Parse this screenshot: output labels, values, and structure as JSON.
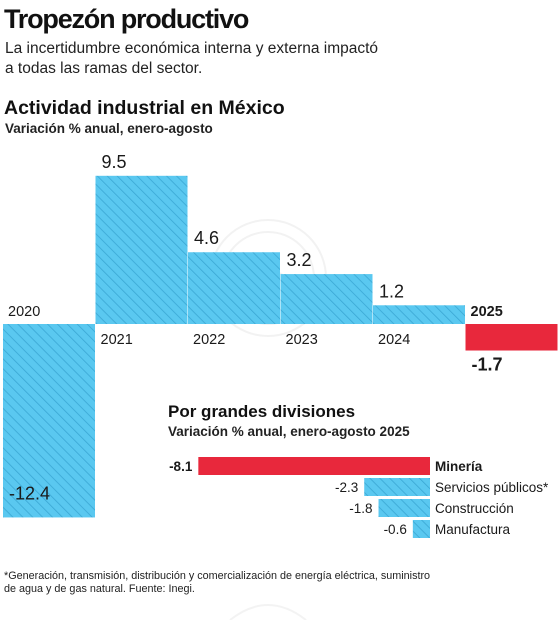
{
  "headline": "Tropezón productivo",
  "subheadline_lines": [
    "La incertidumbre económica interna y externa impactó",
    "a todas las ramas del sector."
  ],
  "footnote_lines": [
    "*Generación, transmisión, distribución y comercialización de energía eléctrica, suministro",
    "de agua y de gas natural. Fuente: Inegi."
  ],
  "colors": {
    "positive": "#5ac8f0",
    "negative": "#e8283c",
    "hatch": "#3aa7d4",
    "text": "#1a1a1a"
  },
  "chart_data": [
    {
      "type": "bar",
      "title": "Actividad industrial en México",
      "subtitle": "Variación % anual, enero-agosto",
      "categories": [
        "2020",
        "2021",
        "2022",
        "2023",
        "2024",
        "2025"
      ],
      "values": [
        -12.4,
        9.5,
        4.6,
        3.2,
        1.2,
        -1.7
      ],
      "value_labels": [
        "-12.4",
        "9.5",
        "4.6",
        "3.2",
        "1.2",
        "-1.7"
      ],
      "ylim": [
        -12.4,
        9.5
      ],
      "grid": false,
      "legend": "none"
    },
    {
      "type": "bar",
      "orientation": "horizontal",
      "title": "Por grandes divisiones",
      "subtitle": "Variación % anual, enero-agosto 2025",
      "categories": [
        "Minería",
        "Servicios públicos*",
        "Construcción",
        "Manufactura"
      ],
      "values": [
        -8.1,
        -2.3,
        -1.8,
        -0.6
      ],
      "value_labels": [
        "-8.1",
        "-2.3",
        "-1.8",
        "-0.6"
      ],
      "xlim": [
        -8.1,
        0
      ],
      "grid": false,
      "legend": "none"
    }
  ]
}
